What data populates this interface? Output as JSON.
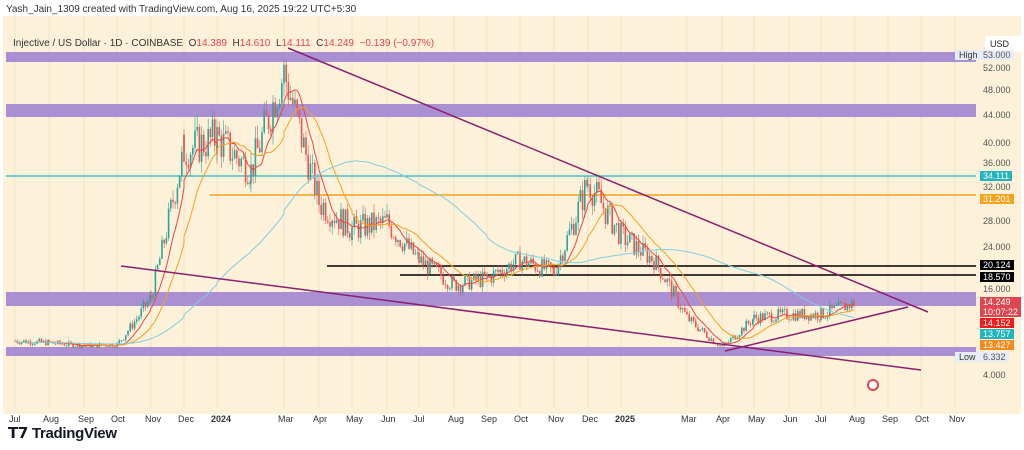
{
  "header": {
    "credit": "Yash_Jain_1309 created with TradingView.com, Aug 16, 2025 19:22 UTC+5:30"
  },
  "legend": {
    "symbol": "Injective / US Dollar · 1D · COINBASE",
    "o_label": "O",
    "o": "14.389",
    "h_label": "H",
    "h": "14.610",
    "l_label": "L",
    "l": "14.111",
    "c_label": "C",
    "c": "14.249",
    "change": "−0.139 (−0.97%)"
  },
  "currency": "USD",
  "price_axis": [
    "52.000",
    "48.000",
    "44.000",
    "40.000",
    "36.000",
    "32.000",
    "28.000",
    "24.000",
    "16.000",
    "4.000"
  ],
  "price_tags": {
    "high_label": "High",
    "high": "53.000",
    "low_label": "Low",
    "low": "6.332",
    "teal": "34.111",
    "orange": "31.201",
    "black1": "20.124",
    "black2": "18.570",
    "last": "14.249",
    "countdown": "10:07:22",
    "red": "14.152",
    "cyan": "13.757",
    "amber": "13.427"
  },
  "time_axis": [
    "Jul",
    "Aug",
    "Sep",
    "Oct",
    "Nov",
    "Dec",
    "2024",
    "Mar",
    "Apr",
    "May",
    "Jun",
    "Jul",
    "Aug",
    "Sep",
    "Oct",
    "Nov",
    "Dec",
    "2025",
    "Mar",
    "Apr",
    "May",
    "Jun",
    "Jul",
    "Aug",
    "Sep",
    "Oct",
    "Nov"
  ],
  "footer": {
    "brand": "TradingView"
  },
  "colors": {
    "bg": "#fdf1d9",
    "band": "#9b7fd1",
    "up": "#26a69a",
    "down": "#ef5350",
    "teal": "#22b5bd",
    "orange": "#f7a21b",
    "trend": "#8b1f6e"
  },
  "chart_data": {
    "type": "candlestick",
    "title": "Injective / US Dollar · 1D · COINBASE",
    "ylabel": "USD",
    "price_path": [
      [
        "2023-07",
        8.2
      ],
      [
        "2023-08",
        7.8
      ],
      [
        "2023-09",
        7.2
      ],
      [
        "2023-10",
        7.5
      ],
      [
        "2023-11",
        15
      ],
      [
        "2023-12",
        38
      ],
      [
        "2024-01",
        40
      ],
      [
        "2024-02",
        35
      ],
      [
        "2024-03",
        50
      ],
      [
        "2024-04",
        30
      ],
      [
        "2024-05",
        26
      ],
      [
        "2024-06",
        27
      ],
      [
        "2024-07",
        21
      ],
      [
        "2024-08",
        17
      ],
      [
        "2024-09",
        18
      ],
      [
        "2024-10",
        21
      ],
      [
        "2024-11",
        19
      ],
      [
        "2024-12",
        33
      ],
      [
        "2025-01",
        25
      ],
      [
        "2025-02",
        21
      ],
      [
        "2025-03",
        12
      ],
      [
        "2025-04",
        7
      ],
      [
        "2025-05",
        12
      ],
      [
        "2025-06",
        12.5
      ],
      [
        "2025-07",
        12.5
      ],
      [
        "2025-08",
        14.25
      ]
    ],
    "horizontal_levels": [
      53.0,
      44.0,
      34.111,
      31.201,
      20.124,
      18.57,
      16.0,
      6.332
    ],
    "ylim": [
      4,
      53
    ]
  }
}
